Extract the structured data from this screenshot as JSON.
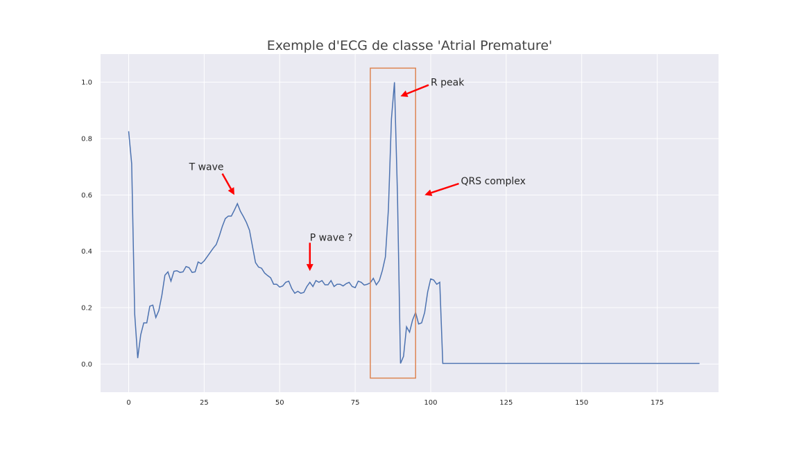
{
  "chart_data": {
    "type": "line",
    "title": "Exemple d'ECG de classe 'Atrial Premature'",
    "xlabel": "",
    "ylabel": "",
    "xlim": [
      -9.3,
      195.3
    ],
    "ylim": [
      -0.1,
      1.1
    ],
    "x_ticks": [
      0,
      25,
      50,
      75,
      100,
      125,
      150,
      175
    ],
    "y_ticks": [
      0.0,
      0.2,
      0.4,
      0.6,
      0.8,
      1.0
    ],
    "grid": true,
    "background": "#eaeaf2",
    "line_color": "#4c72b0",
    "series": [
      {
        "values": [
          0.826,
          0.711,
          0.177,
          0.021,
          0.104,
          0.146,
          0.146,
          0.205,
          0.209,
          0.165,
          0.19,
          0.244,
          0.315,
          0.327,
          0.294,
          0.329,
          0.331,
          0.325,
          0.327,
          0.346,
          0.342,
          0.325,
          0.327,
          0.362,
          0.356,
          0.366,
          0.381,
          0.396,
          0.411,
          0.424,
          0.454,
          0.488,
          0.516,
          0.525,
          0.525,
          0.546,
          0.569,
          0.542,
          0.523,
          0.502,
          0.475,
          0.417,
          0.36,
          0.344,
          0.34,
          0.323,
          0.314,
          0.306,
          0.283,
          0.283,
          0.273,
          0.277,
          0.29,
          0.294,
          0.268,
          0.251,
          0.258,
          0.251,
          0.254,
          0.275,
          0.29,
          0.275,
          0.296,
          0.29,
          0.296,
          0.281,
          0.281,
          0.296,
          0.275,
          0.283,
          0.283,
          0.277,
          0.285,
          0.29,
          0.275,
          0.271,
          0.294,
          0.29,
          0.28,
          0.283,
          0.288,
          0.304,
          0.281,
          0.296,
          0.332,
          0.38,
          0.55,
          0.87,
          1.0,
          0.6,
          0.002,
          0.027,
          0.132,
          0.113,
          0.156,
          0.183,
          0.142,
          0.146,
          0.183,
          0.256,
          0.302,
          0.298,
          0.283,
          0.29,
          0.002,
          0.002,
          0.002,
          0.002,
          0.002,
          0.002,
          0.002,
          0.002,
          0.002,
          0.002,
          0.002,
          0.002,
          0.002,
          0.002,
          0.002,
          0.002,
          0.002,
          0.002,
          0.002,
          0.002,
          0.002,
          0.002,
          0.002,
          0.002,
          0.002,
          0.002,
          0.002,
          0.002,
          0.002,
          0.002,
          0.002,
          0.002,
          0.002,
          0.002,
          0.002,
          0.002,
          0.002,
          0.002,
          0.002,
          0.002,
          0.002,
          0.002,
          0.002,
          0.002,
          0.002,
          0.002,
          0.002,
          0.002,
          0.002,
          0.002,
          0.002,
          0.002,
          0.002,
          0.002,
          0.002,
          0.002,
          0.002,
          0.002,
          0.002,
          0.002,
          0.002,
          0.002,
          0.002,
          0.002,
          0.002,
          0.002,
          0.002,
          0.002,
          0.002,
          0.002,
          0.002,
          0.002,
          0.002,
          0.002,
          0.002,
          0.002,
          0.002,
          0.002,
          0.002,
          0.002,
          0.002,
          0.002,
          0.002,
          0.002,
          0.002,
          0.002
        ]
      }
    ],
    "highlight_box": {
      "x0": 80,
      "x1": 95,
      "y0": -0.05,
      "y1": 1.05,
      "color": "#dd8452"
    },
    "annotations": [
      {
        "text": "R peak",
        "text_x": 100,
        "text_y": 1.0,
        "arrow_to_x": 90,
        "arrow_to_y": 0.95,
        "color": "#ff0000"
      },
      {
        "text": "T wave",
        "text_x": 20,
        "text_y": 0.7,
        "arrow_to_x": 35,
        "arrow_to_y": 0.6,
        "color": "#ff0000"
      },
      {
        "text": "QRS complex",
        "text_x": 110,
        "text_y": 0.65,
        "arrow_to_x": 98,
        "arrow_to_y": 0.6,
        "color": "#ff0000"
      },
      {
        "text": "P wave ?",
        "text_x": 60,
        "text_y": 0.45,
        "arrow_to_x": 60,
        "arrow_to_y": 0.33,
        "color": "#ff0000"
      }
    ]
  }
}
